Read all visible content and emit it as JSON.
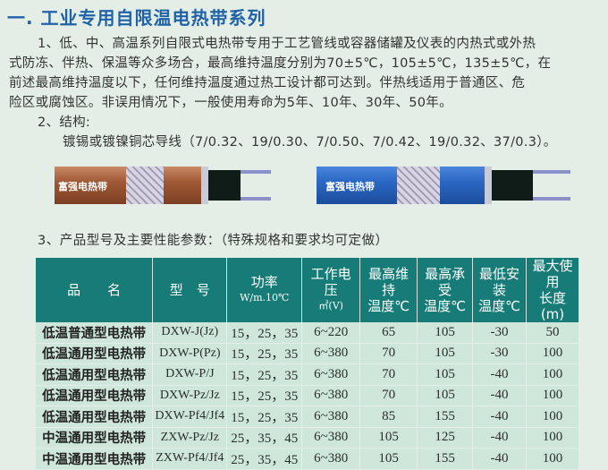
{
  "title": "一. 工业专用自限温电热带系列",
  "section1": {
    "lines": [
      "1、低、中、高温系列自限式电热带专用于工艺管线或容器储罐及仪表的内热式或外热",
      "式防冻、伴热、保温等众多场合，最高维持温度分别为70±5℃，105±5℃，135±5℃，在",
      "前述最高维持温度以下，任何维持温度通过热工设计都可达到。伴热线适用于普通区、危",
      "险区或腐蚀区。非误用情况下，一般使用寿命为5年、10年、30年、50年。"
    ]
  },
  "section2": {
    "heading": "2、结构:",
    "text": "镀锡或镀镍铜芯导线（7/0.32、19/0.30、7/0.50、7/0.42、19/0.32、37/0.3）。"
  },
  "cables": [
    {
      "label": "富强电热带",
      "color": "#a4603c"
    },
    {
      "label": "富强电热带",
      "color": "#2a68c4"
    }
  ],
  "section3": {
    "heading": "3、产品型号及主要性能参数：（特殊规格和要求均可定做）"
  },
  "table": {
    "headers": [
      {
        "main": "品　　名",
        "sub": ""
      },
      {
        "main": "型　号",
        "sub": ""
      },
      {
        "main": "功率",
        "sub": "W/m.10℃"
      },
      {
        "main": "工作电压",
        "sub": "㎡(V)"
      },
      {
        "main": "最高维持",
        "sub": "温度℃"
      },
      {
        "main": "最高承受",
        "sub": "温度℃"
      },
      {
        "main": "最低安装",
        "sub": "温度℃"
      },
      {
        "main": "最大使用",
        "sub": "长度(m)"
      }
    ],
    "rows": [
      [
        "低温普通型电热带",
        "DXW-J(Jz)",
        "15，25，35",
        "6~220",
        "65",
        "105",
        "-30",
        "50"
      ],
      [
        "低温通用型电热带",
        "DXW-P(Pz)",
        "15，25，35",
        "6~380",
        "70",
        "105",
        "-30",
        "100"
      ],
      [
        "低温通用型电热带",
        "DXW-P/J",
        "15，25，35",
        "6~380",
        "70",
        "105",
        "-40",
        "100"
      ],
      [
        "低温通用型电热带",
        "DXW-Pz/Jz",
        "15，25，35",
        "6~380",
        "70",
        "105",
        "-40",
        "100"
      ],
      [
        "低温通用型电热带",
        "DXW-Pf4/Jf4",
        "15，25，35",
        "6~380",
        "85",
        "155",
        "-40",
        "100"
      ],
      [
        "中温通用型电热带",
        "ZXW-Pz/Jz",
        "25，35，45",
        "6~380",
        "105",
        "125",
        "-40",
        "100"
      ],
      [
        "中温通用型电热带",
        "ZXW-Pf4/Jf4",
        "25，35，45",
        "6~380",
        "105",
        "155",
        "-40",
        "100"
      ]
    ]
  }
}
